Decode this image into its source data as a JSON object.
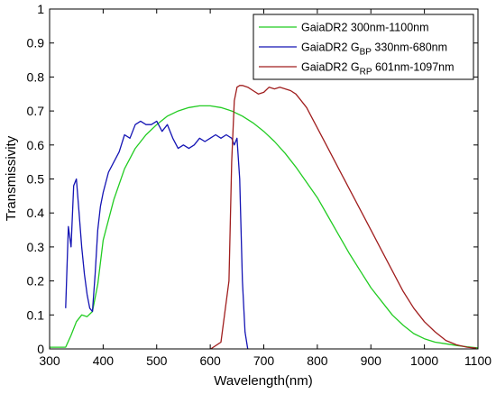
{
  "chart_data": {
    "type": "line",
    "xlabel": "Wavelength(nm)",
    "ylabel": "Transmissivity",
    "xlim": [
      300,
      1100
    ],
    "ylim": [
      0,
      1
    ],
    "x_ticks": [
      300,
      400,
      500,
      600,
      700,
      800,
      900,
      1000,
      1100
    ],
    "y_ticks": [
      0,
      0.1,
      0.2,
      0.3,
      0.4,
      0.5,
      0.6,
      0.7,
      0.8,
      0.9,
      1
    ],
    "grid": false,
    "legend_position": "top-right",
    "series": [
      {
        "name": "GaiaDR2 300nm-1100nm",
        "legend": {
          "base": "GaiaDR2 ",
          "sub": "",
          "rest": "300nm-1100nm"
        },
        "color": "#22cc22",
        "x": [
          300,
          330,
          340,
          350,
          360,
          370,
          380,
          390,
          400,
          420,
          440,
          460,
          480,
          500,
          520,
          540,
          560,
          580,
          600,
          620,
          640,
          660,
          680,
          700,
          720,
          740,
          760,
          780,
          800,
          820,
          840,
          860,
          880,
          900,
          920,
          940,
          960,
          980,
          1000,
          1020,
          1040,
          1060,
          1080,
          1100
        ],
        "y": [
          0.005,
          0.005,
          0.04,
          0.08,
          0.1,
          0.095,
          0.11,
          0.19,
          0.32,
          0.44,
          0.53,
          0.59,
          0.63,
          0.66,
          0.685,
          0.7,
          0.71,
          0.715,
          0.715,
          0.71,
          0.7,
          0.685,
          0.665,
          0.64,
          0.61,
          0.575,
          0.535,
          0.49,
          0.445,
          0.39,
          0.335,
          0.28,
          0.23,
          0.18,
          0.14,
          0.1,
          0.07,
          0.045,
          0.03,
          0.02,
          0.015,
          0.01,
          0.006,
          0.003
        ]
      },
      {
        "name": "GaiaDR2 G_BP 330nm-680nm",
        "legend": {
          "base": "GaiaDR2 G",
          "sub": "BP",
          "rest": " 330nm-680nm"
        },
        "color": "#1414b4",
        "x": [
          330,
          335,
          340,
          345,
          350,
          355,
          360,
          365,
          370,
          375,
          380,
          385,
          390,
          395,
          400,
          410,
          420,
          430,
          440,
          450,
          460,
          470,
          480,
          490,
          500,
          510,
          520,
          530,
          540,
          550,
          560,
          570,
          580,
          590,
          600,
          610,
          620,
          630,
          640,
          645,
          650,
          655,
          660,
          665,
          670
        ],
        "y": [
          0.12,
          0.36,
          0.3,
          0.48,
          0.5,
          0.4,
          0.3,
          0.22,
          0.16,
          0.12,
          0.11,
          0.22,
          0.35,
          0.42,
          0.46,
          0.52,
          0.55,
          0.58,
          0.63,
          0.62,
          0.66,
          0.67,
          0.66,
          0.66,
          0.67,
          0.64,
          0.66,
          0.62,
          0.59,
          0.6,
          0.59,
          0.6,
          0.62,
          0.61,
          0.62,
          0.63,
          0.62,
          0.63,
          0.62,
          0.6,
          0.62,
          0.5,
          0.2,
          0.05,
          0.0
        ]
      },
      {
        "name": "GaiaDR2 G_RP 601nm-1097nm",
        "legend": {
          "base": "GaiaDR2 G",
          "sub": "RP",
          "rest": " 601nm-1097nm"
        },
        "color": "#a01e1e",
        "x": [
          601,
          620,
          635,
          640,
          645,
          650,
          655,
          660,
          670,
          680,
          690,
          700,
          710,
          720,
          730,
          740,
          750,
          760,
          770,
          780,
          790,
          800,
          820,
          840,
          860,
          880,
          900,
          920,
          940,
          960,
          980,
          1000,
          1020,
          1040,
          1060,
          1080,
          1097
        ],
        "y": [
          0.0,
          0.02,
          0.2,
          0.55,
          0.73,
          0.77,
          0.775,
          0.775,
          0.77,
          0.76,
          0.75,
          0.755,
          0.77,
          0.765,
          0.77,
          0.765,
          0.76,
          0.75,
          0.73,
          0.71,
          0.68,
          0.65,
          0.59,
          0.53,
          0.47,
          0.41,
          0.35,
          0.29,
          0.23,
          0.17,
          0.12,
          0.08,
          0.05,
          0.025,
          0.012,
          0.005,
          0.002
        ]
      }
    ]
  }
}
